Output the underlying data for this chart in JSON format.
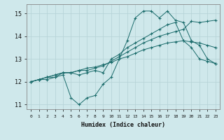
{
  "xlabel": "Humidex (Indice chaleur)",
  "ylabel": "",
  "background_color": "#cfe8eb",
  "grid_color": "#b8d4d8",
  "line_color": "#1a6b6b",
  "xlim": [
    -0.5,
    23.5
  ],
  "ylim": [
    10.8,
    15.4
  ],
  "xticks": [
    0,
    1,
    2,
    3,
    4,
    5,
    6,
    7,
    8,
    9,
    10,
    11,
    12,
    13,
    14,
    15,
    16,
    17,
    18,
    19,
    20,
    21,
    22,
    23
  ],
  "yticks": [
    11,
    12,
    13,
    14,
    15
  ],
  "line1_x": [
    0,
    1,
    2,
    3,
    4,
    5,
    6,
    7,
    8,
    9,
    10,
    11,
    12,
    13,
    14,
    15,
    16,
    17,
    18,
    19,
    20,
    21,
    22,
    23
  ],
  "line1_y": [
    12.0,
    12.1,
    12.1,
    12.2,
    12.3,
    11.3,
    11.0,
    11.3,
    11.4,
    11.9,
    12.2,
    13.0,
    13.8,
    14.8,
    15.1,
    15.1,
    14.8,
    15.1,
    14.7,
    14.6,
    13.8,
    13.6,
    13.0,
    12.8
  ],
  "line2_x": [
    0,
    1,
    2,
    3,
    4,
    5,
    6,
    7,
    8,
    9,
    10,
    11,
    12,
    13,
    14,
    15,
    16,
    17,
    18,
    19,
    20,
    21,
    22,
    23
  ],
  "line2_y": [
    12.0,
    12.1,
    12.2,
    12.2,
    12.4,
    12.4,
    12.3,
    12.4,
    12.5,
    12.4,
    13.0,
    13.2,
    13.5,
    13.7,
    13.9,
    14.1,
    14.3,
    14.5,
    14.6,
    13.8,
    13.5,
    13.0,
    12.9,
    12.8
  ],
  "line3_x": [
    0,
    1,
    2,
    3,
    4,
    5,
    6,
    7,
    8,
    9,
    10,
    11,
    12,
    13,
    14,
    15,
    16,
    17,
    18,
    19,
    20,
    21,
    22,
    23
  ],
  "line3_y": [
    12.0,
    12.1,
    12.2,
    12.3,
    12.4,
    12.4,
    12.5,
    12.5,
    12.6,
    12.7,
    12.9,
    13.1,
    13.3,
    13.5,
    13.7,
    13.85,
    14.0,
    14.1,
    14.2,
    14.3,
    14.65,
    14.6,
    14.65,
    14.7
  ],
  "line4_x": [
    0,
    1,
    2,
    3,
    4,
    5,
    6,
    7,
    8,
    9,
    10,
    11,
    12,
    13,
    14,
    15,
    16,
    17,
    18,
    19,
    20,
    21,
    22,
    23
  ],
  "line4_y": [
    12.0,
    12.1,
    12.2,
    12.3,
    12.4,
    12.4,
    12.5,
    12.6,
    12.65,
    12.75,
    12.85,
    13.0,
    13.1,
    13.25,
    13.4,
    13.5,
    13.6,
    13.7,
    13.75,
    13.8,
    13.75,
    13.7,
    13.6,
    13.5
  ]
}
